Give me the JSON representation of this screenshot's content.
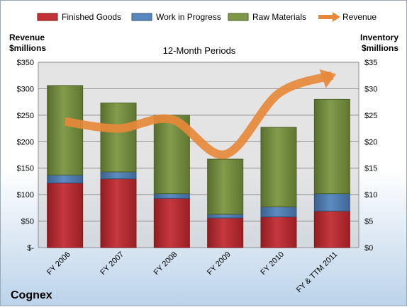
{
  "chart_data": {
    "type": "bar",
    "stacked": true,
    "company": "Cognex",
    "title": "12-Month Periods",
    "categories": [
      "FY 2006",
      "FY 2007",
      "FY 2008",
      "FY 2009",
      "FY 2010",
      "FY & TTM 2011"
    ],
    "left_axis": {
      "label_line1": "Revenue",
      "label_line2": "$millions",
      "ylim": [
        0,
        350
      ],
      "ticks": [
        "$-",
        "$50",
        "$100",
        "$150",
        "$200",
        "$250",
        "$300",
        "$350"
      ]
    },
    "right_axis": {
      "label_line1": "Inventory",
      "label_line2": "$millions",
      "ylim": [
        0,
        35
      ],
      "ticks": [
        "$0",
        "$5",
        "$10",
        "$15",
        "$20",
        "$25",
        "$30",
        "$35"
      ]
    },
    "series": [
      {
        "name": "Finished Goods",
        "axis": "right",
        "color": "#c0272d",
        "values": [
          12.2,
          13.0,
          9.3,
          5.6,
          5.8,
          6.9
        ]
      },
      {
        "name": "Work in Progress",
        "axis": "right",
        "color": "#4f81bd",
        "values": [
          1.5,
          1.3,
          0.9,
          0.7,
          1.9,
          3.3
        ]
      },
      {
        "name": "Raw Materials",
        "axis": "right",
        "color": "#77933c",
        "values": [
          16.9,
          13.0,
          14.8,
          10.4,
          15.0,
          17.8
        ]
      },
      {
        "name": "Revenue",
        "axis": "left",
        "type": "line",
        "color": "#e7893a",
        "values": [
          238,
          225,
          242,
          176,
          291,
          325
        ]
      }
    ],
    "grid": true,
    "legend": "top"
  }
}
